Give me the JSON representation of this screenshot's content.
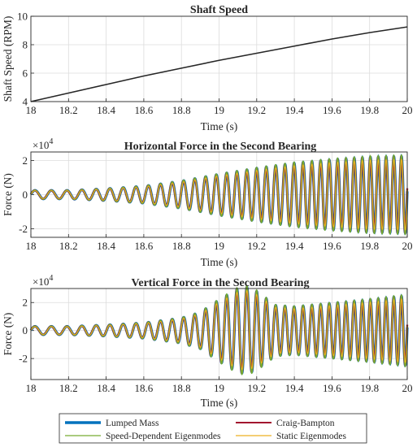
{
  "chart_data": [
    {
      "type": "line",
      "title": "Shaft Speed",
      "xlabel": "Time (s)",
      "ylabel": "Shaft Speed (RPM)",
      "xlim": [
        18,
        20
      ],
      "ylim": [
        4,
        10
      ],
      "xticks": [
        "18",
        "18.2",
        "18.4",
        "18.6",
        "18.8",
        "19",
        "19.2",
        "19.4",
        "19.6",
        "19.8",
        "20"
      ],
      "yticks": [
        "4",
        "6",
        "8",
        "10"
      ],
      "grid": true,
      "series": [
        {
          "color": "#262626",
          "x": [
            18,
            18.2,
            18.4,
            18.6,
            18.8,
            19,
            19.2,
            19.4,
            19.6,
            19.8,
            20
          ],
          "y": [
            4.0,
            4.6,
            5.2,
            5.8,
            6.35,
            6.9,
            7.4,
            7.9,
            8.4,
            8.85,
            9.25
          ]
        }
      ]
    },
    {
      "type": "line",
      "title": "Horizontal Force in the Second Bearing",
      "xlabel": "Time (s)",
      "ylabel": "Force (N)",
      "multiplier": "×10",
      "multiplier_exp": "4",
      "xlim": [
        18,
        20
      ],
      "ylim": [
        -2.5,
        2.5
      ],
      "xticks": [
        "18",
        "18.2",
        "18.4",
        "18.6",
        "18.8",
        "19",
        "19.2",
        "19.4",
        "19.6",
        "19.8",
        "20"
      ],
      "yticks": [
        "-2",
        "0",
        "2"
      ],
      "grid": true,
      "oscillation": {
        "start_frequency_hz": 11,
        "end_frequency_hz": 25,
        "envelope_time": [
          18,
          18.2,
          18.4,
          18.6,
          18.8,
          19.0,
          19.2,
          19.4,
          19.6,
          19.8,
          20.0
        ],
        "envelope_amplitude": [
          0.25,
          0.25,
          0.35,
          0.5,
          0.8,
          1.2,
          1.55,
          1.85,
          2.05,
          2.2,
          2.25
        ]
      },
      "series_colors": [
        "#0072BD",
        "#A2142F",
        "#77AC30",
        "#EDB120"
      ]
    },
    {
      "type": "line",
      "title": "Vertical Force in the Second Bearing",
      "xlabel": "Time (s)",
      "ylabel": "Force (N)",
      "multiplier": "×10",
      "multiplier_exp": "4",
      "xlim": [
        18,
        20
      ],
      "ylim": [
        -3.5,
        3.0
      ],
      "xticks": [
        "18",
        "18.2",
        "18.4",
        "18.6",
        "18.8",
        "19",
        "19.2",
        "19.4",
        "19.6",
        "19.8",
        "20"
      ],
      "yticks": [
        "-2",
        "0",
        "2"
      ],
      "grid": true,
      "oscillation": {
        "start_frequency_hz": 11,
        "end_frequency_hz": 25,
        "envelope_time": [
          18,
          18.2,
          18.4,
          18.6,
          18.8,
          18.9,
          19.0,
          19.1,
          19.15,
          19.2,
          19.3,
          19.4,
          19.6,
          19.8,
          20.0
        ],
        "envelope_amplitude": [
          0.3,
          0.3,
          0.4,
          0.55,
          0.9,
          1.3,
          2.2,
          3.0,
          3.1,
          2.8,
          1.8,
          1.7,
          1.95,
          2.2,
          2.5
        ]
      },
      "series_colors": [
        "#0072BD",
        "#A2142F",
        "#77AC30",
        "#EDB120"
      ]
    }
  ],
  "legend": {
    "placement": "bottom-center",
    "entries": [
      {
        "label": "Lumped Mass",
        "color": "#0072BD"
      },
      {
        "label": "Craig-Bampton",
        "color": "#A2142F"
      },
      {
        "label": "Speed-Dependent Eigenmodes",
        "color": "#77AC30"
      },
      {
        "label": "Static Eigenmodes",
        "color": "#EDB120"
      }
    ]
  }
}
